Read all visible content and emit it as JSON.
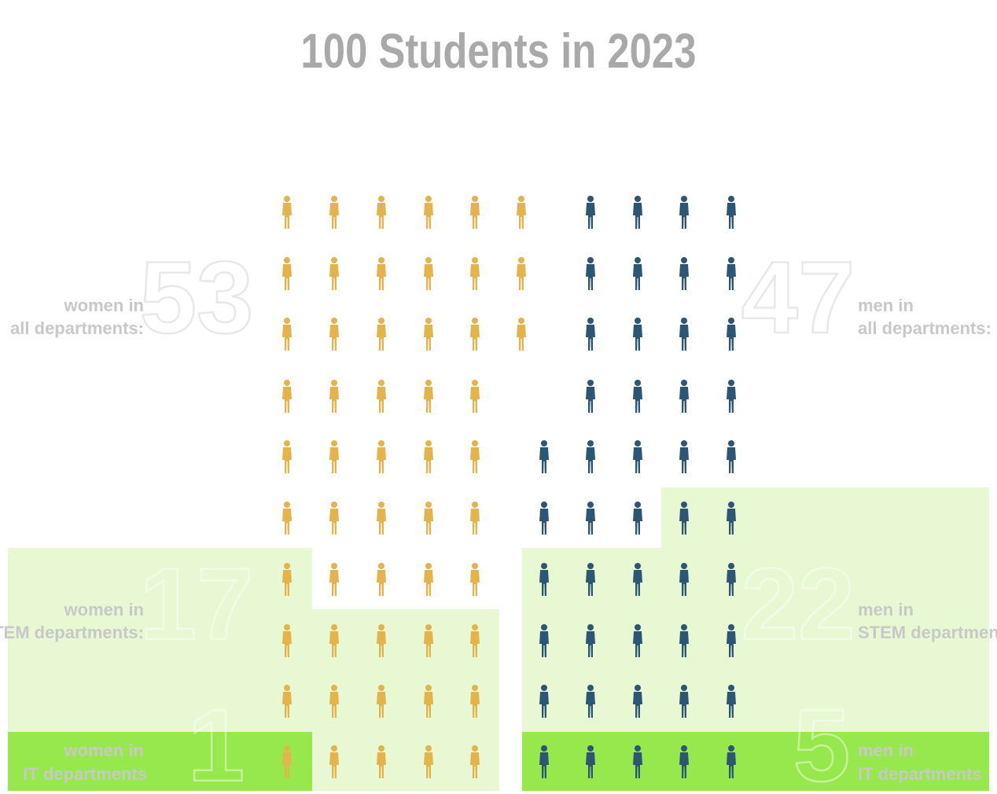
{
  "title": "100 Students in 2023",
  "colors": {
    "women": "#e3b44c",
    "men": "#2d5574",
    "stem_fill": "#e8f8d2",
    "it_fill": "#96e84c",
    "label_gray": "#c8c8c8",
    "number_outline": "#e8e8e8"
  },
  "icon": "person-icon",
  "chart_data": {
    "type": "pictograph",
    "title": "100 Students in 2023",
    "units": "students",
    "total": 100,
    "groups": [
      {
        "name": "women",
        "all": {
          "count": 53,
          "number": "53",
          "label_line1": "women in",
          "label_line2": "all departments:"
        },
        "stem": {
          "count": 17,
          "number": "17",
          "label_line1": "women in",
          "label_line2": "STEM departments:"
        },
        "it": {
          "count": 1,
          "number": "1",
          "label_line1": "women in",
          "label_line2": "IT departments"
        }
      },
      {
        "name": "men",
        "all": {
          "count": 47,
          "number": "47",
          "label_line1": "men in",
          "label_line2": "all departments:"
        },
        "stem": {
          "count": 22,
          "number": "22",
          "label_line1": "men in",
          "label_line2": "STEM departments:"
        },
        "it": {
          "count": 5,
          "number": "5",
          "label_line1": "men in",
          "label_line2": "IT departments"
        }
      }
    ]
  }
}
